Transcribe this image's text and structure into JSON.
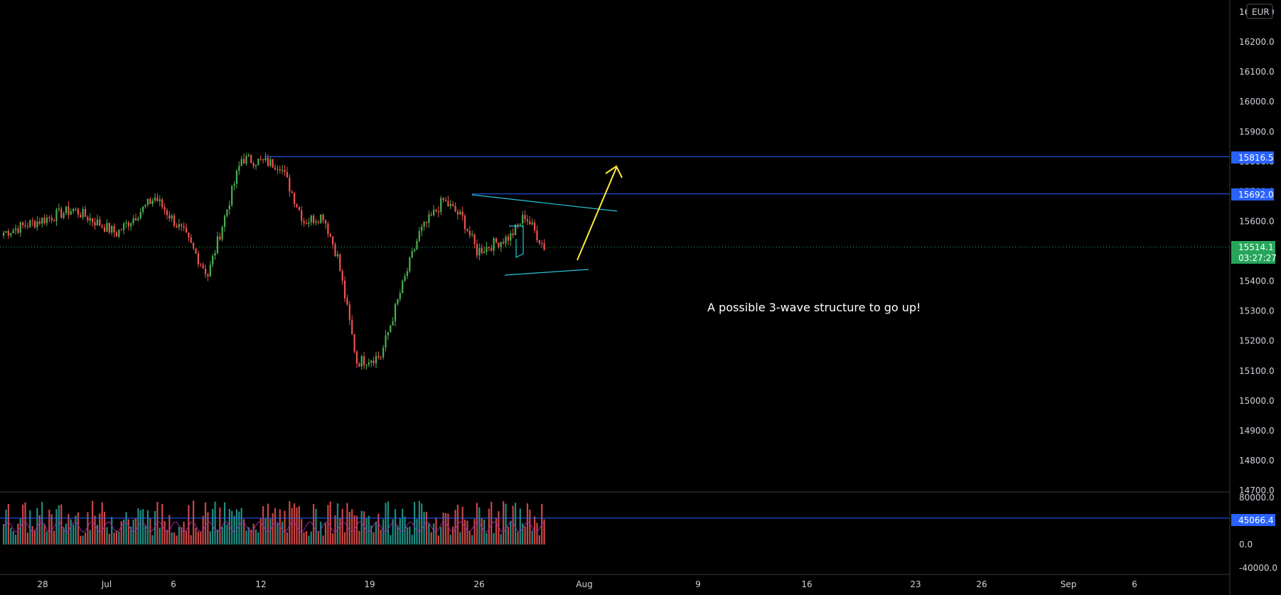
{
  "currency_badge": "EUR",
  "price_axis_ticks": [
    "16300.0",
    "16200.0",
    "16100.0",
    "16000.0",
    "15900.0",
    "15800.0",
    "15700.0",
    "15600.0",
    "15500.0",
    "15400.0",
    "15300.0",
    "15200.0",
    "15100.0",
    "15000.0",
    "14900.0",
    "14800.0",
    "14700.0"
  ],
  "volume_axis_ticks": [
    "80000.0",
    "40000.0",
    "0.0",
    "-40000.0"
  ],
  "time_axis_labels": [
    "28",
    "Jul",
    "6",
    "12",
    "19",
    "26",
    "Aug",
    "9",
    "16",
    "23",
    "26",
    "Sep",
    "6"
  ],
  "price_tags": {
    "high_level": "15816.5",
    "resistance_level": "15692.0",
    "last_price": "15514.1",
    "countdown": "03:27:27",
    "volume_level": "45066.4"
  },
  "annotation": "A possible 3-wave structure to go up!",
  "colors": {
    "background": "#000000",
    "up": "#26a69a",
    "up_body": "#4caf50",
    "down": "#ef5350",
    "level_line": "#2962ff",
    "trend_line": "#26c6da",
    "arrow": "#ffeb3b",
    "last_price_tag": "#26a65b",
    "volume_ma": "#9c27b0"
  },
  "chart_data": {
    "type": "candlestick",
    "title": "",
    "ylim": [
      14700,
      16300
    ],
    "volume_ylim": [
      -40000,
      80000
    ],
    "levels": [
      15816.5,
      15692.0,
      15514.1
    ],
    "volume_level": 45066.4,
    "segments": [
      {
        "from": 15560,
        "to": 15640,
        "bars": 30
      },
      {
        "from": 15640,
        "to": 15560,
        "bars": 18
      },
      {
        "from": 15560,
        "to": 15680,
        "bars": 16
      },
      {
        "from": 15680,
        "to": 15560,
        "bars": 12
      },
      {
        "from": 15560,
        "to": 15420,
        "bars": 10
      },
      {
        "from": 15420,
        "to": 15810,
        "bars": 14
      },
      {
        "from": 15810,
        "to": 15790,
        "bars": 16
      },
      {
        "from": 15790,
        "to": 15600,
        "bars": 10
      },
      {
        "from": 15600,
        "to": 15620,
        "bars": 8
      },
      {
        "from": 15620,
        "to": 15480,
        "bars": 6
      },
      {
        "from": 15480,
        "to": 15130,
        "bars": 8
      },
      {
        "from": 15130,
        "to": 15150,
        "bars": 10
      },
      {
        "from": 15150,
        "to": 15360,
        "bars": 8
      },
      {
        "from": 15360,
        "to": 15560,
        "bars": 8
      },
      {
        "from": 15560,
        "to": 15670,
        "bars": 10
      },
      {
        "from": 15670,
        "to": 15610,
        "bars": 8
      },
      {
        "from": 15610,
        "to": 15500,
        "bars": 6
      },
      {
        "from": 15500,
        "to": 15550,
        "bars": 14
      },
      {
        "from": 15550,
        "to": 15620,
        "bars": 6
      },
      {
        "from": 15620,
        "to": 15514,
        "bars": 8
      }
    ]
  }
}
